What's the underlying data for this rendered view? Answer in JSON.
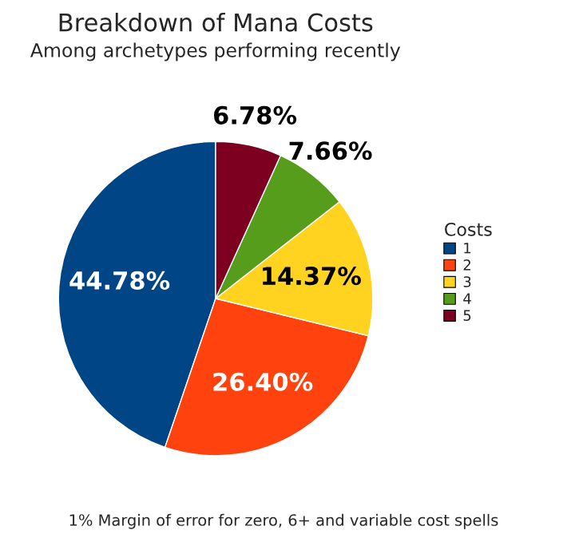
{
  "chart_data": {
    "type": "pie",
    "title": "Breakdown of Mana Costs",
    "subtitle": "Among archetypes performing recently",
    "legend_title": "Costs",
    "categories": [
      "1",
      "2",
      "3",
      "4",
      "5"
    ],
    "values": [
      44.78,
      26.4,
      14.37,
      7.66,
      6.78
    ],
    "value_labels": [
      "44.78%",
      "26.40%",
      "14.37%",
      "7.66%",
      "6.78%"
    ],
    "colors": [
      "#004586",
      "#ff420e",
      "#ffd320",
      "#579d1c",
      "#7e0021"
    ],
    "legend": "right",
    "annotations": [
      "1% Margin of error for zero, 6+ and variable cost spells"
    ]
  }
}
